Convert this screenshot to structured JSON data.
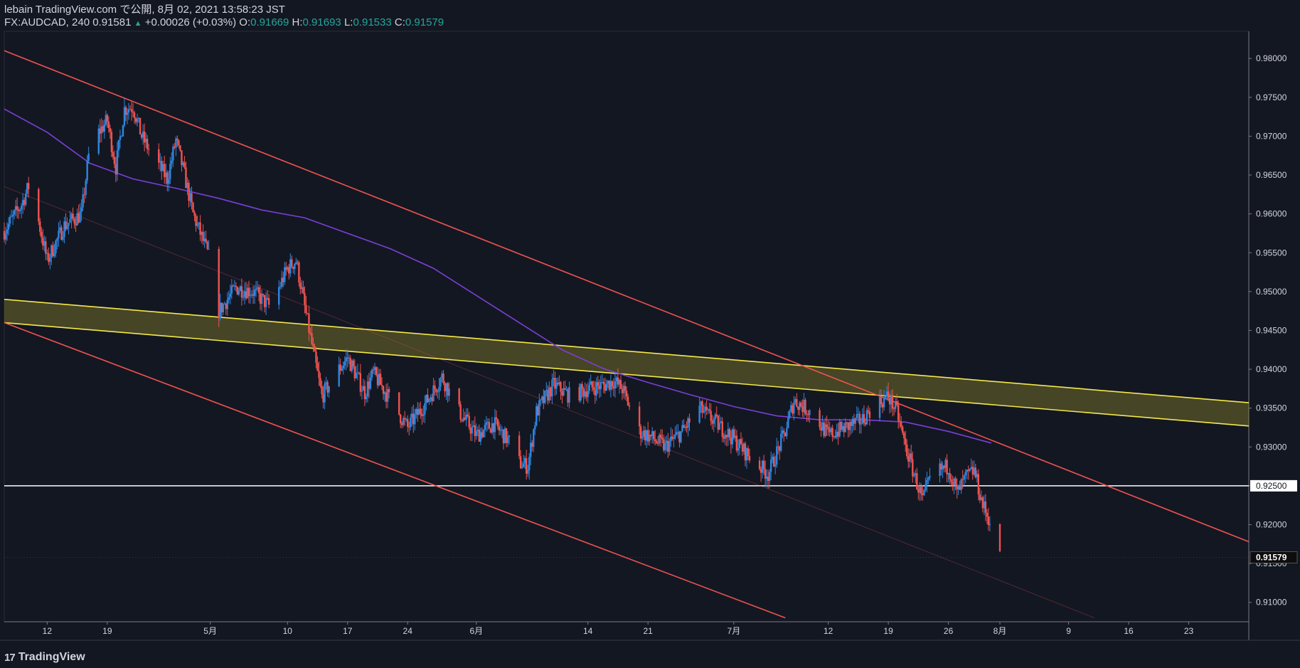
{
  "header": {
    "publish_line": "lebain TradingView.com で公開, 8月 02, 2021 13:58:23 JST",
    "symbol_interval": "FX:AUDCAD, 240",
    "last_price": "0.91581",
    "change": "+0.00026 (+0.03%)",
    "open_label": "O:",
    "open": "0.91669",
    "high_label": "H:",
    "high": "0.91693",
    "low_label": "L:",
    "low": "0.91533",
    "close_label": "C:",
    "close": "0.91579"
  },
  "footer": {
    "logo_mark": "17",
    "logo_text": "TradingView"
  },
  "colors": {
    "background": "#131722",
    "up_candle": "#2e86e0",
    "down_candle": "#ef5350",
    "channel_line": "#f05350",
    "zone_border": "#f5e84a",
    "zone_fill": "#a59a2a",
    "moving_average": "#7b3fd6",
    "level_line": "#ffffff",
    "text": "#d1d4dc",
    "ohlc_value": "#26a69a"
  },
  "chart_data": {
    "type": "candlestick",
    "symbol": "FX:AUDCAD",
    "interval": "240",
    "x_axis_labels": [
      "12",
      "19",
      "5月",
      "10",
      "17",
      "24",
      "6月",
      "14",
      "21",
      "7月",
      "12",
      "19",
      "26",
      "8月",
      "9",
      "16",
      "23"
    ],
    "y_ticks": [
      "0.91000",
      "0.91500",
      "0.92000",
      "0.92500",
      "0.93000",
      "0.93500",
      "0.94000",
      "0.94500",
      "0.95000",
      "0.95500",
      "0.96000",
      "0.96500",
      "0.97000",
      "0.97500",
      "0.98000"
    ],
    "y_range": [
      0.9075,
      0.9835
    ],
    "x_range": [
      "2021-04-07",
      "2021-08-30"
    ],
    "grid": false,
    "price_labels": [
      "0.92500",
      "0.91579"
    ],
    "current_price": 0.91579,
    "candle_path": [
      [
        "2021-04-07",
        0.9578
      ],
      [
        "2021-04-09",
        0.9612
      ],
      [
        "2021-04-10",
        0.964
      ],
      [
        "2021-04-12",
        0.954
      ],
      [
        "2021-04-14",
        0.9585
      ],
      [
        "2021-04-16",
        0.96
      ],
      [
        "2021-04-17",
        0.969
      ],
      [
        "2021-04-19",
        0.972
      ],
      [
        "2021-04-20",
        0.966
      ],
      [
        "2021-04-21",
        0.9735
      ],
      [
        "2021-04-22",
        0.9738
      ],
      [
        "2021-04-23",
        0.97
      ],
      [
        "2021-04-24",
        0.968
      ],
      [
        "2021-04-26",
        0.9645
      ],
      [
        "2021-04-27",
        0.9695
      ],
      [
        "2021-04-28",
        0.965
      ],
      [
        "2021-04-29",
        0.96
      ],
      [
        "2021-05-01",
        0.954
      ],
      [
        "2021-05-02",
        0.9475
      ],
      [
        "2021-05-04",
        0.9505
      ],
      [
        "2021-05-06",
        0.95
      ],
      [
        "2021-05-08",
        0.948
      ],
      [
        "2021-05-10",
        0.953
      ],
      [
        "2021-05-11",
        0.954
      ],
      [
        "2021-05-12",
        0.948
      ],
      [
        "2021-05-14",
        0.9365
      ],
      [
        "2021-05-16",
        0.94
      ],
      [
        "2021-05-17",
        0.9415
      ],
      [
        "2021-05-19",
        0.937
      ],
      [
        "2021-05-20",
        0.9395
      ],
      [
        "2021-05-22",
        0.936
      ],
      [
        "2021-05-24",
        0.9325
      ],
      [
        "2021-05-26",
        0.9355
      ],
      [
        "2021-05-28",
        0.939
      ],
      [
        "2021-05-30",
        0.9345
      ],
      [
        "2021-06-01",
        0.9315
      ],
      [
        "2021-06-03",
        0.933
      ],
      [
        "2021-06-05",
        0.9305
      ],
      [
        "2021-06-06",
        0.928
      ],
      [
        "2021-06-07",
        0.9275
      ],
      [
        "2021-06-08",
        0.9345
      ],
      [
        "2021-06-10",
        0.938
      ],
      [
        "2021-06-12",
        0.9365
      ],
      [
        "2021-06-14",
        0.9375
      ],
      [
        "2021-06-16",
        0.938
      ],
      [
        "2021-06-17",
        0.9385
      ],
      [
        "2021-06-18",
        0.9375
      ],
      [
        "2021-06-20",
        0.932
      ],
      [
        "2021-06-21",
        0.9315
      ],
      [
        "2021-06-23",
        0.93
      ],
      [
        "2021-06-25",
        0.932
      ],
      [
        "2021-06-27",
        0.935
      ],
      [
        "2021-06-29",
        0.933
      ],
      [
        "2021-07-01",
        0.931
      ],
      [
        "2021-07-03",
        0.9285
      ],
      [
        "2021-07-05",
        0.9265
      ],
      [
        "2021-07-07",
        0.932
      ],
      [
        "2021-07-08",
        0.936
      ],
      [
        "2021-07-10",
        0.9345
      ],
      [
        "2021-07-12",
        0.9315
      ],
      [
        "2021-07-14",
        0.9325
      ],
      [
        "2021-07-16",
        0.9335
      ],
      [
        "2021-07-17",
        0.935
      ],
      [
        "2021-07-19",
        0.9365
      ],
      [
        "2021-07-20",
        0.9345
      ],
      [
        "2021-07-21",
        0.93
      ],
      [
        "2021-07-22",
        0.9265
      ],
      [
        "2021-07-23",
        0.923
      ],
      [
        "2021-07-24",
        0.9265
      ],
      [
        "2021-07-26",
        0.9275
      ],
      [
        "2021-07-27",
        0.924
      ],
      [
        "2021-07-28",
        0.926
      ],
      [
        "2021-07-29",
        0.927
      ],
      [
        "2021-07-30",
        0.9225
      ],
      [
        "2021-07-31",
        0.92
      ],
      [
        "2021-08-01",
        0.9158
      ]
    ],
    "moving_average": [
      [
        "2021-04-07",
        0.9735
      ],
      [
        "2021-04-12",
        0.9705
      ],
      [
        "2021-04-17",
        0.9665
      ],
      [
        "2021-04-22",
        0.9645
      ],
      [
        "2021-04-27",
        0.9633
      ],
      [
        "2021-05-02",
        0.962
      ],
      [
        "2021-05-07",
        0.9605
      ],
      [
        "2021-05-12",
        0.9595
      ],
      [
        "2021-05-17",
        0.9575
      ],
      [
        "2021-05-22",
        0.9555
      ],
      [
        "2021-05-27",
        0.953
      ],
      [
        "2021-06-01",
        0.9495
      ],
      [
        "2021-06-06",
        0.946
      ],
      [
        "2021-06-11",
        0.9425
      ],
      [
        "2021-06-16",
        0.94
      ],
      [
        "2021-06-21",
        0.9383
      ],
      [
        "2021-06-26",
        0.9367
      ],
      [
        "2021-07-01",
        0.9352
      ],
      [
        "2021-07-06",
        0.934
      ],
      [
        "2021-07-11",
        0.9335
      ],
      [
        "2021-07-16",
        0.9335
      ],
      [
        "2021-07-21",
        0.9332
      ],
      [
        "2021-07-26",
        0.932
      ],
      [
        "2021-07-31",
        0.9305
      ]
    ],
    "trendlines": [
      {
        "role": "channel-upper",
        "from": [
          "2021-04-07",
          0.981
        ],
        "to": [
          "2021-08-30",
          0.9178
        ]
      },
      {
        "role": "channel-lower",
        "from": [
          "2021-04-07",
          0.946
        ],
        "to": [
          "2021-07-07",
          0.908
        ]
      },
      {
        "role": "channel-mid",
        "from": [
          "2021-04-07",
          0.9635
        ],
        "to": [
          "2021-08-12",
          0.908
        ]
      }
    ],
    "zone": {
      "upper": [
        [
          "2021-04-07",
          0.949
        ],
        [
          "2021-08-30",
          0.9357
        ]
      ],
      "lower": [
        [
          "2021-04-07",
          0.946
        ],
        [
          "2021-08-30",
          0.9327
        ]
      ]
    },
    "horizontal_level": 0.925
  }
}
